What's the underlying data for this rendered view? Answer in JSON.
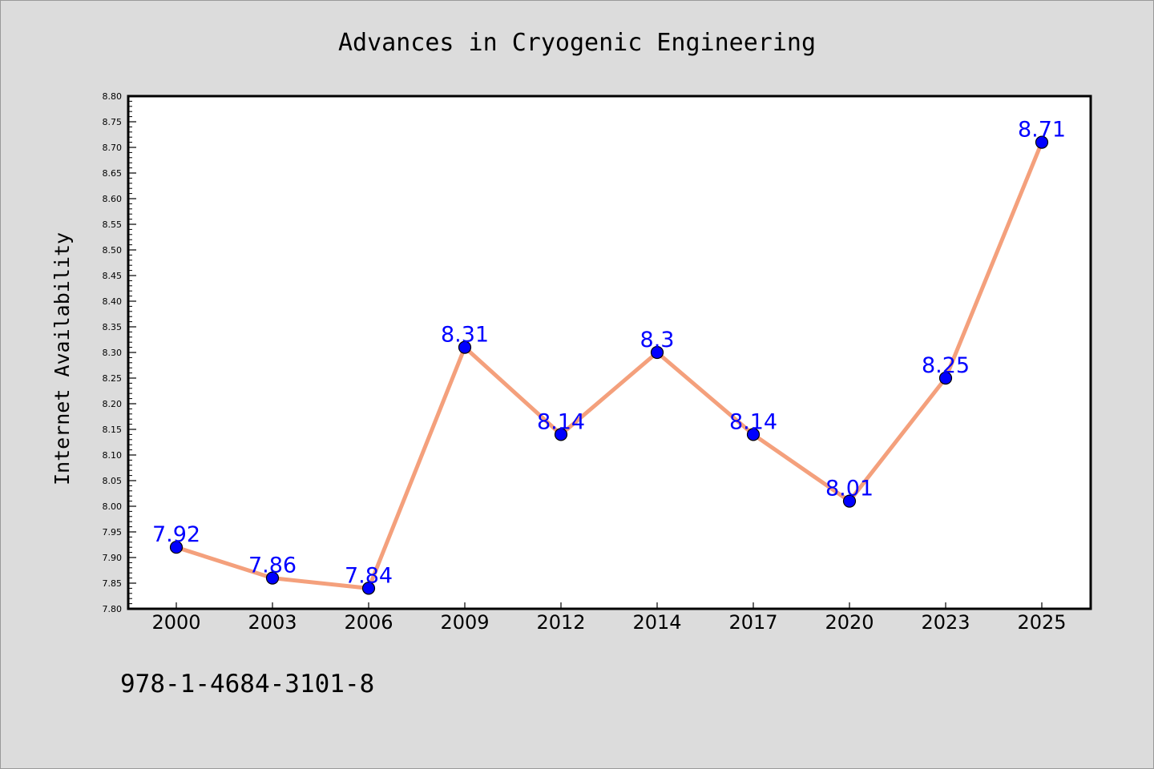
{
  "chart_data": {
    "type": "line",
    "title": "Advances in Cryogenic Engineering",
    "xlabel": "",
    "ylabel": "Internet Availability",
    "categories": [
      "2000",
      "2003",
      "2006",
      "2009",
      "2012",
      "2014",
      "2017",
      "2020",
      "2023",
      "2025"
    ],
    "series": [
      {
        "values": [
          7.92,
          7.86,
          7.84,
          8.31,
          8.14,
          8.3,
          8.14,
          8.01,
          8.25,
          8.71
        ],
        "labels": [
          "7.92",
          "7.86",
          "7.84",
          "8.31",
          "8.14",
          "8.3",
          "8.14",
          "8.01",
          "8.25",
          "8.71"
        ],
        "line_color": "#f4a07c",
        "marker_color": "#0000ff",
        "label_color": "#0000ff"
      }
    ],
    "ylim": [
      7.8,
      8.8
    ],
    "yticks": [
      "7.80",
      "7.85",
      "7.90",
      "7.95",
      "8.00",
      "8.05",
      "8.10",
      "8.15",
      "8.20",
      "8.25",
      "8.30",
      "8.35",
      "8.40",
      "8.45",
      "8.50",
      "8.55",
      "8.60",
      "8.65",
      "8.70",
      "8.75",
      "8.80"
    ],
    "grid": false,
    "legend": "none"
  },
  "footer_code": "978-1-4684-3101-8",
  "colors": {
    "background": "#dcdcdc",
    "plot_background": "#ffffff",
    "axis": "#000000"
  }
}
